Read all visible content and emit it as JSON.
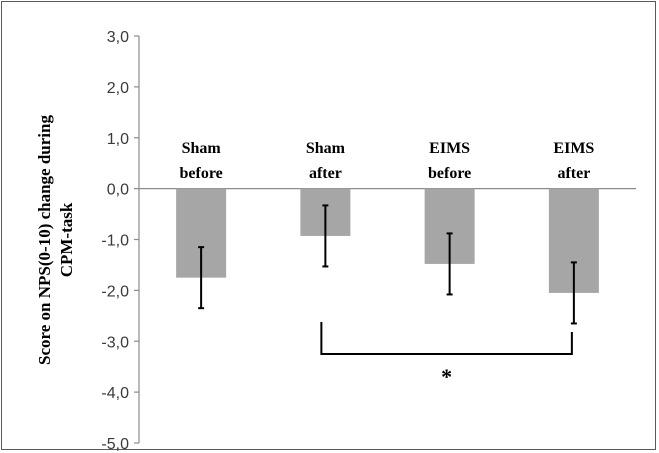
{
  "chart_data": {
    "type": "bar",
    "categories": [
      [
        "Sham",
        "before"
      ],
      [
        "Sham",
        "after"
      ],
      [
        "EIMS",
        "before"
      ],
      [
        "EIMS",
        "after"
      ]
    ],
    "values": [
      -1.75,
      -0.93,
      -1.48,
      -2.05
    ],
    "error": [
      0.6,
      0.6,
      0.6,
      0.6
    ],
    "ylabel": [
      "Score on NPS(0-10) change during",
      "CPM-task"
    ],
    "ylim": [
      -5,
      3
    ],
    "yticks": [
      "3,0",
      "2,0",
      "1,0",
      "0,0",
      "-1,0",
      "-2,0",
      "-3,0",
      "-4,0",
      "-5,0"
    ],
    "ytick_values": [
      3,
      2,
      1,
      0,
      -1,
      -2,
      -3,
      -4,
      -5
    ],
    "significance": {
      "from": 1,
      "to": 3,
      "label": "*"
    },
    "bar_color": "#a6a6a6",
    "grid": false
  }
}
